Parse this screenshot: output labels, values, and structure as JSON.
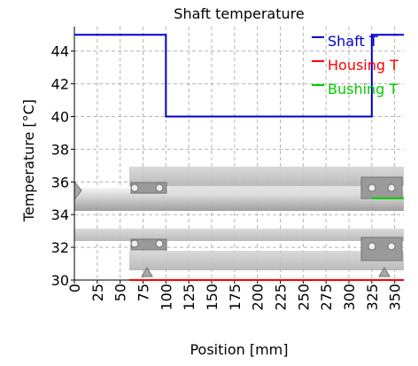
{
  "chart_data": {
    "type": "line",
    "title": "Shaft temperature",
    "xlabel": "Position [mm]",
    "ylabel": "Temperature [°C]",
    "xlim": [
      0,
      360
    ],
    "ylim": [
      30,
      45.5
    ],
    "x_ticks": [
      0,
      25,
      50,
      75,
      100,
      125,
      150,
      175,
      200,
      225,
      250,
      275,
      300,
      325,
      350
    ],
    "y_ticks": [
      30,
      32,
      34,
      36,
      38,
      40,
      42,
      44
    ],
    "grid": true,
    "legend_position": "top-right",
    "series": [
      {
        "name": "Shaft T",
        "color": "#0000cc",
        "x": [
          0,
          100,
          100,
          325,
          325,
          360
        ],
        "y": [
          45,
          45,
          40,
          40,
          45,
          45
        ]
      },
      {
        "name": "Housing T",
        "color": "#ff0000",
        "x": [
          60,
          360
        ],
        "y": [
          30,
          30
        ]
      },
      {
        "name": "Bushing T",
        "color": "#00cc00",
        "x": [
          325,
          360
        ],
        "y": [
          35,
          35
        ]
      }
    ]
  }
}
